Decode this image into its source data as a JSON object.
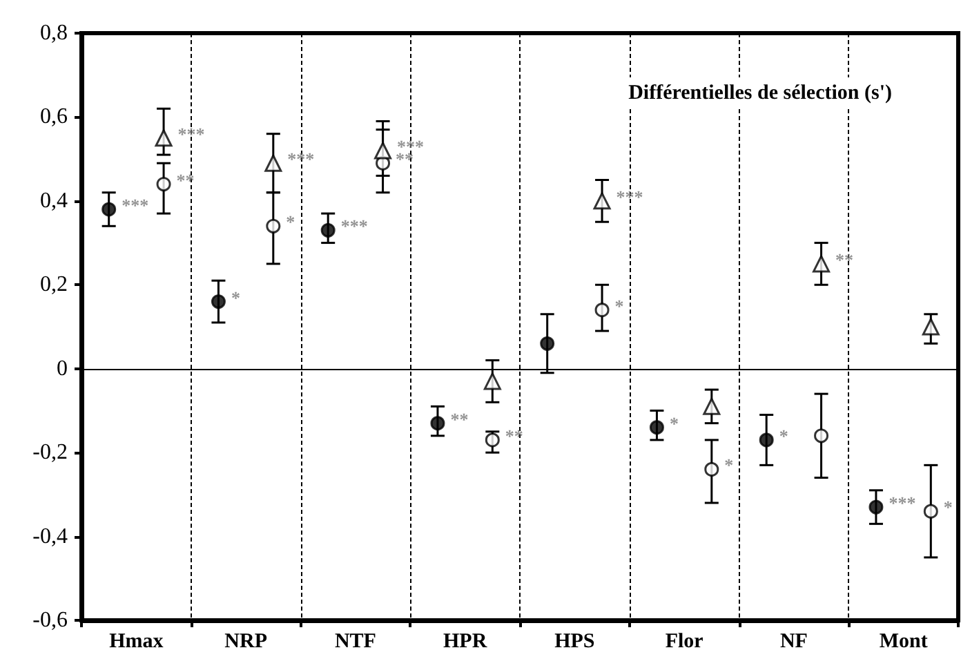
{
  "chart_data": {
    "type": "scatter",
    "title": "Différentielles de sélection (s')",
    "categories": [
      "Hmax",
      "NRP",
      "NTF",
      "HPR",
      "HPS",
      "Flor",
      "NF",
      "Mont"
    ],
    "series": [
      {
        "color": "#000000",
        "marker": "circle",
        "values": [
          0.38,
          0.16,
          0.33,
          -0.13,
          0.06,
          -0.14,
          -0.17,
          -0.33
        ],
        "value_labels": [
          "***",
          "*",
          "***",
          "**",
          null,
          "*",
          "*",
          "***"
        ],
        "errors": [
          [
            0.34,
            0.42
          ],
          [
            0.11,
            0.21
          ],
          [
            0.3,
            0.37
          ],
          [
            -0.16,
            -0.09
          ],
          [
            -0.01,
            0.13
          ],
          [
            -0.17,
            -0.1
          ],
          [
            -0.23,
            -0.11
          ],
          [
            -0.37,
            -0.29
          ]
        ]
      },
      {
        "color": "#ffffff",
        "marker": "circle",
        "values": [
          0.44,
          0.34,
          0.49,
          -0.17,
          0.14,
          -0.24,
          -0.16,
          -0.34
        ],
        "value_labels": [
          "**",
          "*",
          "**",
          "**",
          "*",
          "*",
          null,
          "*"
        ],
        "errors": [
          [
            0.37,
            0.49
          ],
          [
            0.25,
            0.42
          ],
          [
            0.42,
            0.57
          ],
          [
            -0.2,
            -0.15
          ],
          [
            0.09,
            0.2
          ],
          [
            -0.32,
            -0.17
          ],
          [
            -0.26,
            -0.06
          ],
          [
            -0.45,
            -0.23
          ]
        ]
      },
      {
        "color": "#ffffff",
        "marker": "triangle",
        "values": [
          0.55,
          0.49,
          0.52,
          -0.03,
          0.4,
          -0.09,
          0.25,
          0.1
        ],
        "value_labels": [
          "***",
          "***",
          "***",
          null,
          "***",
          null,
          "**",
          null
        ],
        "errors": [
          [
            0.51,
            0.62
          ],
          [
            0.42,
            0.56
          ],
          [
            0.46,
            0.59
          ],
          [
            -0.08,
            0.02
          ],
          [
            0.35,
            0.45
          ],
          [
            -0.13,
            -0.05
          ],
          [
            0.2,
            0.3
          ],
          [
            0.06,
            0.13
          ]
        ]
      }
    ],
    "ylim": [
      -0.6,
      0.8
    ],
    "yticks": [
      {
        "value": -0.6,
        "label": "-0,6"
      },
      {
        "value": -0.4,
        "label": "-0,4"
      },
      {
        "value": -0.2,
        "label": "-0,2"
      },
      0,
      {
        "value": 0.2,
        "label": "0,2"
      },
      {
        "value": 0.4,
        "label": "0,4"
      },
      {
        "value": 0.6,
        "label": "0,6"
      },
      {
        "value": 0.8,
        "label": "0,8"
      }
    ],
    "grid": "x",
    "ref_lines": [
      {
        "axis": "y",
        "value": 0
      }
    ]
  }
}
